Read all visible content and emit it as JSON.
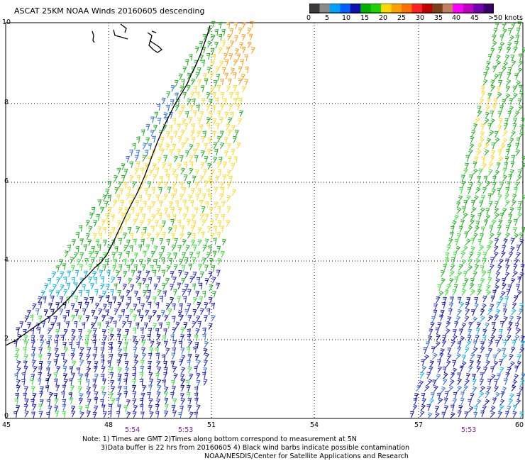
{
  "title": "ASCAT 25KM NOAA Winds 20160605 descending",
  "legend": {
    "labels": [
      "0",
      "5",
      "10",
      "15",
      "20",
      "25",
      "30",
      "35",
      "40",
      "45",
      ">50 knots"
    ],
    "colors": [
      "#3a3a3a",
      "#8a8a8a",
      "#00a0ff",
      "#0060ff",
      "#1010b0",
      "#00b000",
      "#20d000",
      "#ffd800",
      "#ffa000",
      "#ff7000",
      "#ff2020",
      "#c00000",
      "#7a3f1a",
      "#c08060",
      "#ff00ff",
      "#c000c0",
      "#7000b0",
      "#3a006a"
    ]
  },
  "axes": {
    "y_ticks": [
      "0",
      "2",
      "4",
      "6",
      "8",
      "10"
    ],
    "x_ticks": [
      "45",
      "48",
      "51",
      "54",
      "57",
      "60"
    ]
  },
  "pass_times": [
    "5:54",
    "5:53",
    "5:53"
  ],
  "notes": {
    "line1": "Note: 1) Times are GMT 2)Times along bottom correspond to measurement at 5N",
    "line2": "3)Data buffer is 22 hrs from 20160605 4) Black wind barbs indicate possible contamination",
    "line3": "NOAA/NESDIS/Center for Satellite Applications and Research"
  },
  "wind_colors": {
    "blue": "#1818c8",
    "navy": "#000090",
    "mid_blue": "#2a6ae0",
    "cyan": "#00b0e0",
    "green": "#18b018",
    "bright_green": "#30e030",
    "yellow": "#ffd820",
    "orange": "#ff9c10",
    "coast": "#000000"
  }
}
